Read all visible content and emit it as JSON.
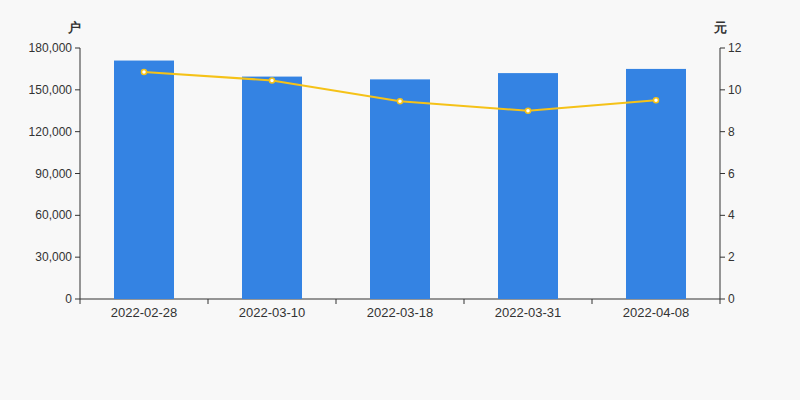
{
  "chart_data": {
    "type": "bar",
    "y_label": "户",
    "y2_label": "元",
    "categories": [
      "2022-02-28",
      "2022-03-10",
      "2022-03-18",
      "2022-03-31",
      "2022-04-08"
    ],
    "series": [
      {
        "type": "bar",
        "color": "#3483e3",
        "values": [
          171000,
          159500,
          157500,
          162000,
          165000
        ]
      },
      {
        "type": "line",
        "axis": "y2",
        "color": "#f5c218",
        "marker": "circle",
        "values": [
          10.85,
          10.45,
          9.45,
          9.0,
          9.5
        ]
      }
    ],
    "ylim": [
      0,
      180000
    ],
    "yticks": [
      0,
      {
        "value": 30000,
        "label": "30,000"
      },
      {
        "value": 60000,
        "label": "60,000"
      },
      {
        "value": 90000,
        "label": "90,000"
      },
      {
        "value": 120000,
        "label": "120,000"
      },
      {
        "value": 150000,
        "label": "150,000"
      },
      {
        "value": 180000,
        "label": "180,000"
      }
    ],
    "y2lim": [
      0,
      12
    ],
    "y2ticks": [
      0,
      2,
      4,
      6,
      8,
      10,
      12
    ],
    "grid": false
  }
}
